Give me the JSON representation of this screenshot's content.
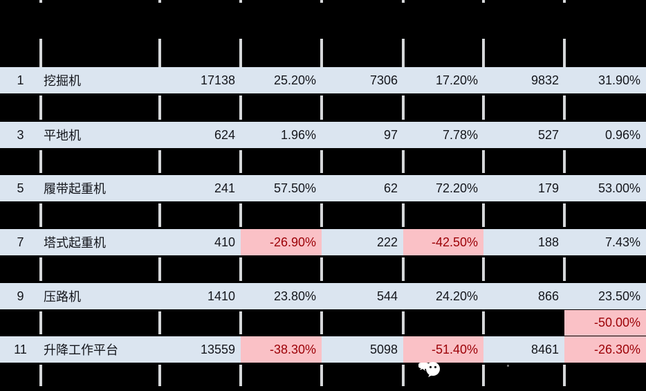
{
  "table": {
    "rows": [
      {
        "no": "1",
        "name": "挖掘机",
        "c2": "17138",
        "c3": "25.20%",
        "c4": "7306",
        "c5": "17.20%",
        "c6": "9832",
        "c7": "31.90%"
      },
      {
        "no": "3",
        "name": "平地机",
        "c2": "624",
        "c3": "1.96%",
        "c4": "97",
        "c5": "7.78%",
        "c6": "527",
        "c7": "0.96%"
      },
      {
        "no": "5",
        "name": "履带起重机",
        "c2": "241",
        "c3": "57.50%",
        "c4": "62",
        "c5": "72.20%",
        "c6": "179",
        "c7": "53.00%"
      },
      {
        "no": "7",
        "name": "塔式起重机",
        "c2": "410",
        "c3": "-26.90%",
        "c4": "222",
        "c5": "-42.50%",
        "c6": "188",
        "c7": "7.43%"
      },
      {
        "no": "9",
        "name": "压路机",
        "c2": "1410",
        "c3": "23.80%",
        "c4": "544",
        "c5": "24.20%",
        "c6": "866",
        "c7": "23.50%"
      },
      {
        "no": "11",
        "name": "升降工作平台",
        "c2": "13559",
        "c3": "-38.30%",
        "c4": "5098",
        "c5": "-51.40%",
        "c6": "8461",
        "c7": "-26.30%"
      }
    ],
    "partial_row_value": "-50.00%"
  },
  "colors": {
    "background": "#000000",
    "row_background": "#dbe5f0",
    "negative_cell_background": "#fac1c6",
    "negative_cell_text": "#9c0006",
    "text": "#14161c",
    "gridline": "#d5d7d9"
  },
  "icons": {
    "watermark": "wechat-icon"
  }
}
